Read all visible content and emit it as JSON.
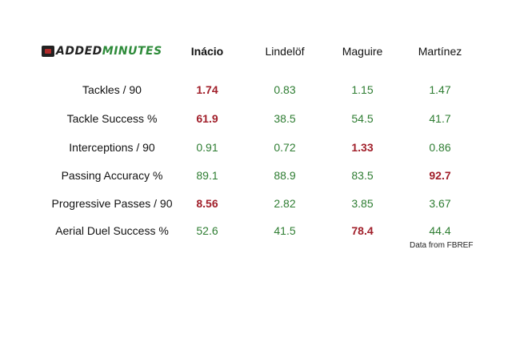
{
  "logo": {
    "added": "ADDED",
    "minutes": "MINUTES"
  },
  "players": [
    {
      "name": "Inácio",
      "bold": true
    },
    {
      "name": "Lindelöf",
      "bold": false
    },
    {
      "name": "Maguire",
      "bold": false
    },
    {
      "name": "Martínez",
      "bold": false
    }
  ],
  "colors": {
    "normal": "#2e7d32",
    "best": "#a11f2a"
  },
  "chart_data": {
    "type": "table",
    "columns": [
      "Inácio",
      "Lindelöf",
      "Maguire",
      "Martínez"
    ],
    "rows": [
      {
        "label": "Tackles / 90",
        "values": [
          "1.74",
          "0.83",
          "1.15",
          "1.47"
        ],
        "best_index": 0
      },
      {
        "label": "Tackle Success %",
        "values": [
          "61.9",
          "38.5",
          "54.5",
          "41.7"
        ],
        "best_index": 0
      },
      {
        "label": "Interceptions / 90",
        "values": [
          "0.91",
          "0.72",
          "1.33",
          "0.86"
        ],
        "best_index": 2
      },
      {
        "label": "Passing Accuracy %",
        "values": [
          "89.1",
          "88.9",
          "83.5",
          "92.7"
        ],
        "best_index": 3
      },
      {
        "label": "Progressive Passes / 90",
        "values": [
          "8.56",
          "2.82",
          "3.85",
          "3.67"
        ],
        "best_index": 0
      },
      {
        "label": "Aerial Duel Success %",
        "values": [
          "52.6",
          "41.5",
          "78.4",
          "44.4"
        ],
        "best_index": 2
      }
    ]
  },
  "source_note": "Data from FBREF"
}
